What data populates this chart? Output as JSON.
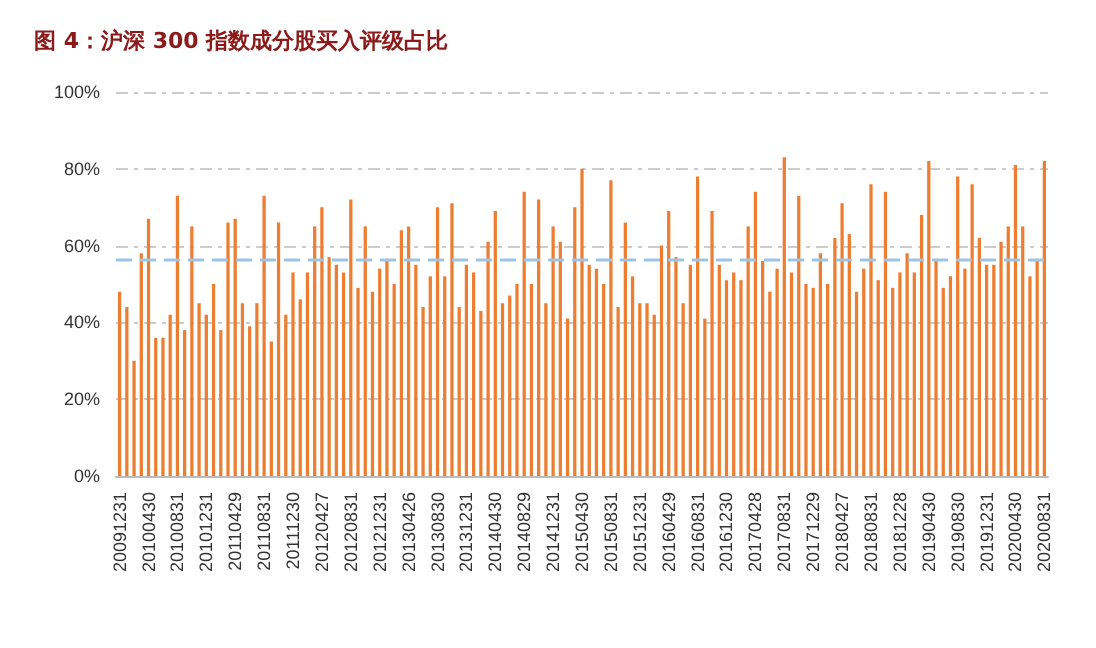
{
  "chart_data": {
    "type": "bar",
    "title": "图 4：沪深 300 指数成分股买入评级占比",
    "categories": [
      "20091231",
      null,
      null,
      null,
      "20100430",
      null,
      null,
      null,
      "20100831",
      null,
      null,
      null,
      "20101231",
      null,
      null,
      null,
      "20110429",
      null,
      null,
      null,
      "20110831",
      null,
      null,
      null,
      "20111230",
      null,
      null,
      null,
      "20120427",
      null,
      null,
      null,
      "20120831",
      null,
      null,
      null,
      "20121231",
      null,
      null,
      null,
      "20130426",
      null,
      null,
      null,
      "20130830",
      null,
      null,
      null,
      "20131231",
      null,
      null,
      null,
      "20140430",
      null,
      null,
      null,
      "20140829",
      null,
      null,
      null,
      "20141231",
      null,
      null,
      null,
      "20150430",
      null,
      null,
      null,
      "20150831",
      null,
      null,
      null,
      "20151231",
      null,
      null,
      null,
      "20160429",
      null,
      null,
      null,
      "20160831",
      null,
      null,
      null,
      "20161230",
      null,
      null,
      null,
      "20170428",
      null,
      null,
      null,
      "20170831",
      null,
      null,
      null,
      "20171229",
      null,
      null,
      null,
      "20180427",
      null,
      null,
      null,
      "20180831",
      null,
      null,
      null,
      "20181228",
      null,
      null,
      null,
      "20190430",
      null,
      null,
      null,
      "20190830",
      null,
      null,
      null,
      "20191231",
      null,
      null,
      null,
      "20200430",
      null,
      null,
      null,
      "20200831"
    ],
    "values": [
      48,
      44,
      30,
      58,
      67,
      36,
      36,
      42,
      73,
      38,
      65,
      45,
      42,
      50,
      38,
      66,
      67,
      45,
      39,
      45,
      73,
      35,
      66,
      42,
      53,
      46,
      53,
      65,
      70,
      57,
      55,
      53,
      72,
      49,
      65,
      48,
      54,
      56,
      50,
      64,
      65,
      55,
      44,
      52,
      70,
      52,
      71,
      44,
      55,
      53,
      43,
      61,
      69,
      45,
      47,
      50,
      74,
      50,
      72,
      45,
      65,
      61,
      41,
      70,
      80,
      55,
      54,
      50,
      77,
      44,
      66,
      52,
      45,
      45,
      42,
      60,
      69,
      57,
      45,
      55,
      78,
      41,
      69,
      55,
      51,
      53,
      51,
      65,
      74,
      56,
      48,
      54,
      83,
      53,
      73,
      50,
      49,
      58,
      50,
      62,
      71,
      63,
      48,
      54,
      76,
      51,
      74,
      49,
      53,
      58,
      53,
      68,
      82,
      56,
      49,
      52,
      78,
      54,
      76,
      62,
      55,
      55,
      61,
      65,
      81,
      65,
      52,
      56,
      82
    ],
    "color": "#ed7d31",
    "ylim": [
      0,
      100
    ],
    "yticks": [
      {
        "value": 0,
        "label": "0%"
      },
      {
        "value": 20,
        "label": "20%"
      },
      {
        "value": 40,
        "label": "40%"
      },
      {
        "value": 60,
        "label": "60%"
      },
      {
        "value": 80,
        "label": "80%"
      },
      {
        "value": 100,
        "label": "100%"
      }
    ],
    "grid": "y",
    "ref_lines": [
      {
        "axis": "y",
        "value": 56.5,
        "color": "#9dc3e6",
        "line_style": "dashed"
      }
    ]
  }
}
